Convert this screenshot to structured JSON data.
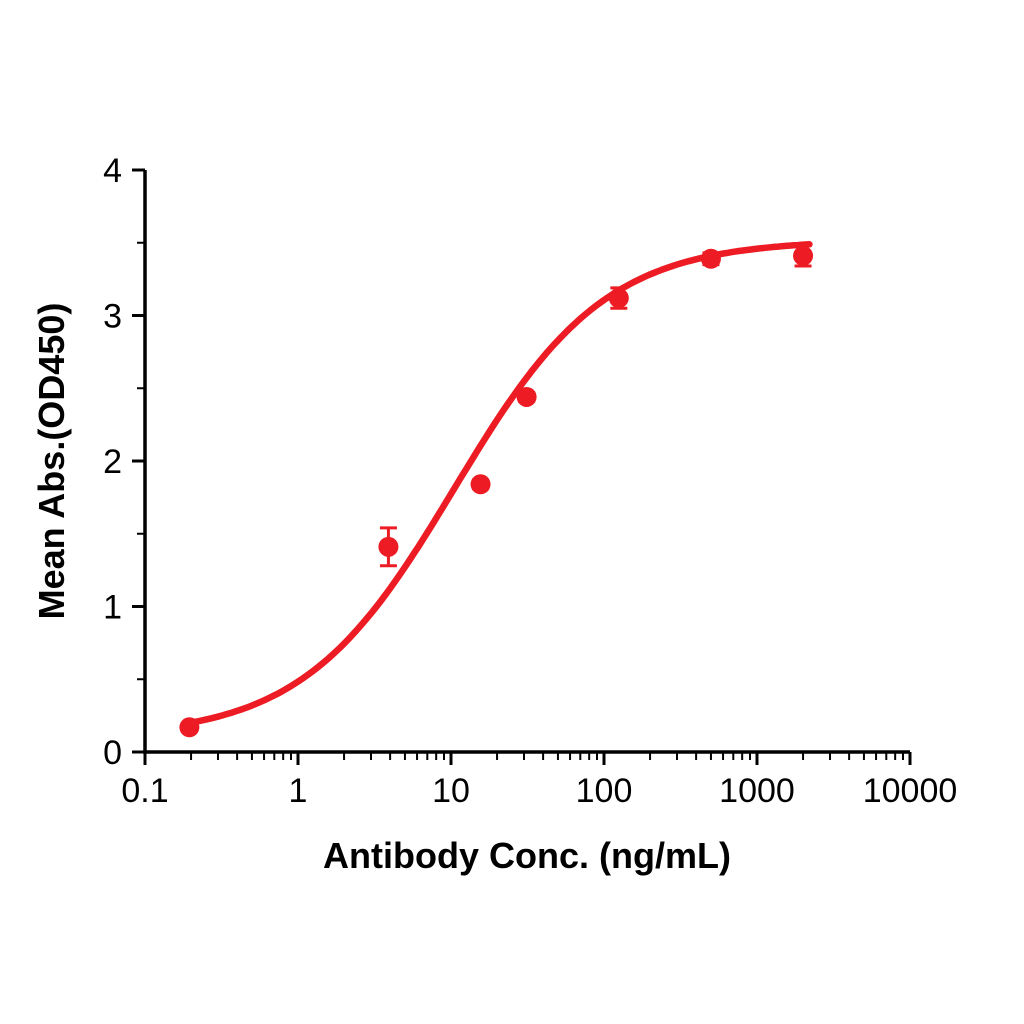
{
  "chart_data": {
    "type": "scatter",
    "title": "",
    "xlabel": "Antibody Conc. (ng/mL)",
    "ylabel": "Mean Abs.(OD450)",
    "x_scale": "log",
    "y_scale": "linear",
    "xlim": [
      0.1,
      10000
    ],
    "ylim": [
      0,
      4
    ],
    "grid": false,
    "legend": false,
    "axis_color": "#000000",
    "x_ticks": [
      {
        "value": 0.1,
        "label": "0.1"
      },
      {
        "value": 1,
        "label": "1"
      },
      {
        "value": 10,
        "label": "10"
      },
      {
        "value": 100,
        "label": "100"
      },
      {
        "value": 1000,
        "label": "1000"
      },
      {
        "value": 10000,
        "label": "10000"
      }
    ],
    "y_ticks": [
      {
        "value": 0,
        "label": "0"
      },
      {
        "value": 1,
        "label": "1"
      },
      {
        "value": 2,
        "label": "2"
      },
      {
        "value": 3,
        "label": "3"
      },
      {
        "value": 4,
        "label": "4"
      }
    ],
    "series": [
      {
        "name": "Mean Abs.(OD450)",
        "color": "#ED1C24",
        "marker": "circle",
        "points": [
          {
            "x": 0.195,
            "y": 0.17,
            "err": 0.02
          },
          {
            "x": 3.9,
            "y": 1.41,
            "err": 0.13
          },
          {
            "x": 15.6,
            "y": 1.84,
            "err": 0.03
          },
          {
            "x": 31.2,
            "y": 2.44,
            "err": 0.03
          },
          {
            "x": 125,
            "y": 3.12,
            "err": 0.07
          },
          {
            "x": 500,
            "y": 3.39,
            "err": 0.04
          },
          {
            "x": 2000,
            "y": 3.41,
            "err": 0.07
          }
        ],
        "fit": {
          "model": "4PL",
          "bottom": 0.1,
          "top": 3.52,
          "ec50": 10.5,
          "hill": 0.88,
          "x_start": 0.18,
          "x_end": 2200
        }
      }
    ]
  }
}
